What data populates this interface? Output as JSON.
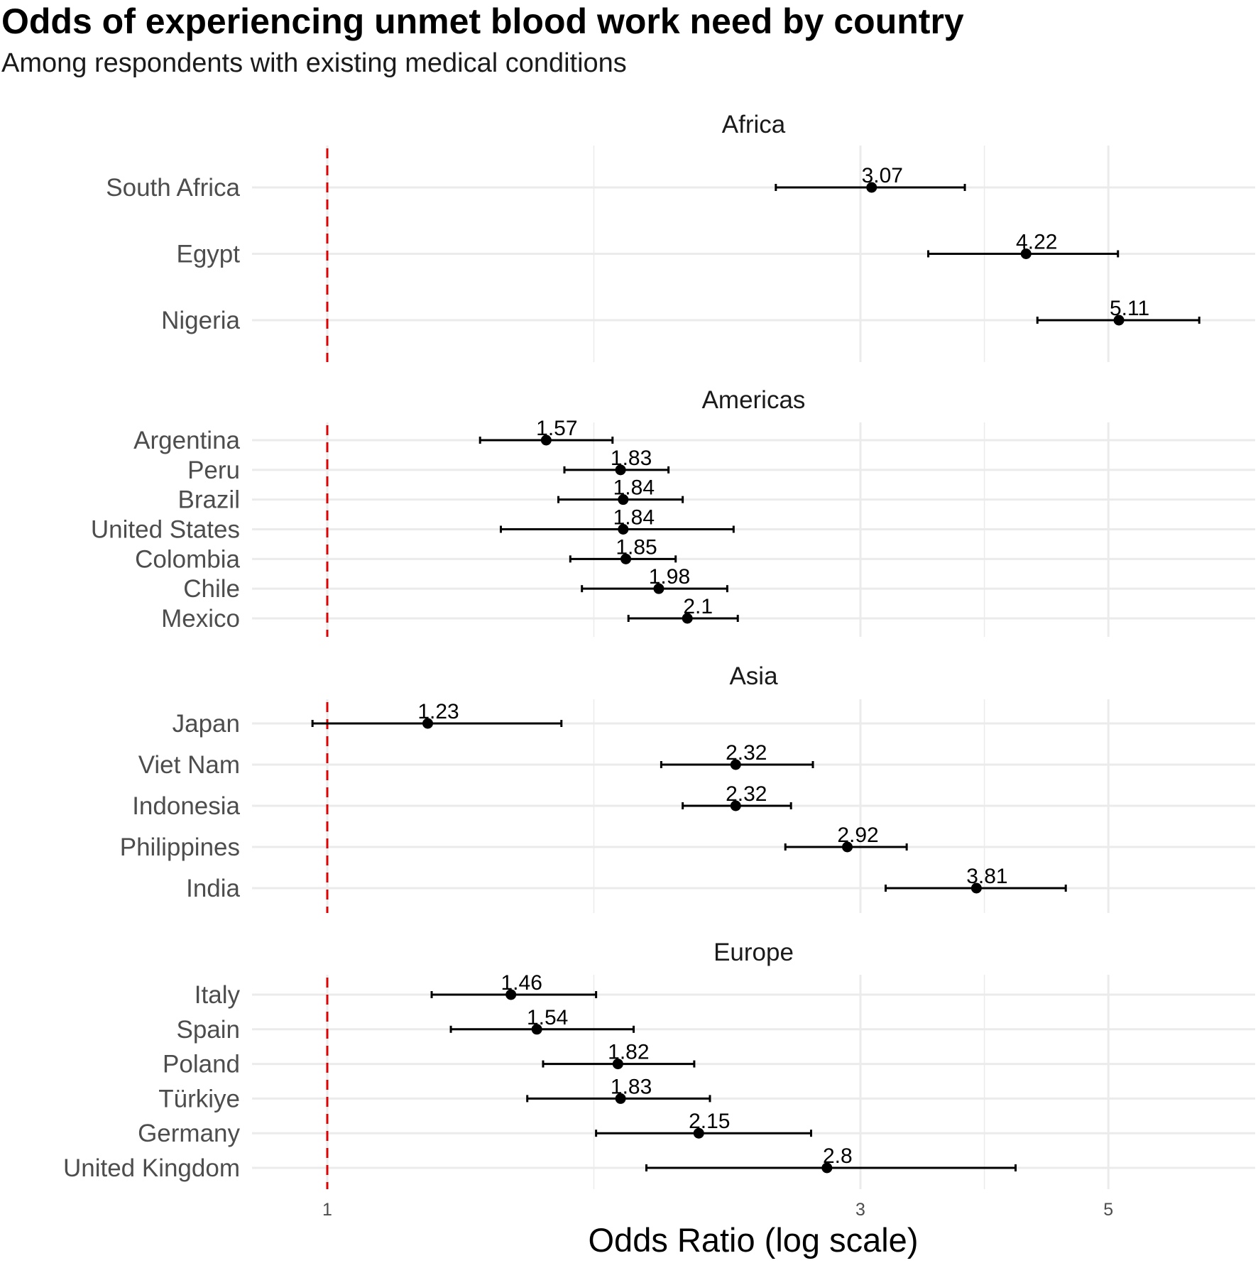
{
  "chart_data": {
    "type": "forest",
    "title": "Odds of experiencing unmet blood work need by country",
    "subtitle": "Among respondents with existing medical conditions",
    "xlabel": "Odds Ratio (log scale)",
    "x_scale": "log",
    "x_ticks": [
      1,
      3,
      5
    ],
    "x_tick_labels": [
      "1",
      "3",
      "5"
    ],
    "xlim": [
      0.915,
      6.5
    ],
    "reference_line": {
      "value": 1,
      "color": "#e00000",
      "style": "dashed"
    },
    "grid": true,
    "facets": [
      {
        "name": "Africa",
        "rows": [
          {
            "country": "South Africa",
            "or": 3.07,
            "label": "3.07",
            "lo": 2.52,
            "hi": 3.72
          },
          {
            "country": "Egypt",
            "or": 4.22,
            "label": "4.22",
            "lo": 3.45,
            "hi": 5.1
          },
          {
            "country": "Nigeria",
            "or": 5.11,
            "label": "5.11",
            "lo": 4.32,
            "hi": 6.03
          }
        ]
      },
      {
        "name": "Americas",
        "rows": [
          {
            "country": "Argentina",
            "or": 1.57,
            "label": "1.57",
            "lo": 1.37,
            "hi": 1.8
          },
          {
            "country": "Peru",
            "or": 1.83,
            "label": "1.83",
            "lo": 1.63,
            "hi": 2.02
          },
          {
            "country": "Brazil",
            "or": 1.84,
            "label": "1.84",
            "lo": 1.61,
            "hi": 2.08
          },
          {
            "country": "United States",
            "or": 1.84,
            "label": "1.84",
            "lo": 1.43,
            "hi": 2.31
          },
          {
            "country": "Colombia",
            "or": 1.85,
            "label": "1.85",
            "lo": 1.65,
            "hi": 2.05
          },
          {
            "country": "Chile",
            "or": 1.98,
            "label": "1.98",
            "lo": 1.69,
            "hi": 2.28
          },
          {
            "country": "Mexico",
            "or": 2.1,
            "label": "2.1",
            "lo": 1.86,
            "hi": 2.33
          }
        ]
      },
      {
        "name": "Asia",
        "rows": [
          {
            "country": "Japan",
            "or": 1.23,
            "label": "1.23",
            "lo": 0.97,
            "hi": 1.62
          },
          {
            "country": "Viet Nam",
            "or": 2.32,
            "label": "2.32",
            "lo": 1.99,
            "hi": 2.72
          },
          {
            "country": "Indonesia",
            "or": 2.32,
            "label": "2.32",
            "lo": 2.08,
            "hi": 2.6
          },
          {
            "country": "Philippines",
            "or": 2.92,
            "label": "2.92",
            "lo": 2.57,
            "hi": 3.3
          },
          {
            "country": "India",
            "or": 3.81,
            "label": "3.81",
            "lo": 3.16,
            "hi": 4.58
          }
        ]
      },
      {
        "name": "Europe",
        "rows": [
          {
            "country": "Italy",
            "or": 1.46,
            "label": "1.46",
            "lo": 1.24,
            "hi": 1.74
          },
          {
            "country": "Spain",
            "or": 1.54,
            "label": "1.54",
            "lo": 1.29,
            "hi": 1.88
          },
          {
            "country": "Poland",
            "or": 1.82,
            "label": "1.82",
            "lo": 1.56,
            "hi": 2.13
          },
          {
            "country": "Türkiye",
            "or": 1.83,
            "label": "1.83",
            "lo": 1.51,
            "hi": 2.2
          },
          {
            "country": "Germany",
            "or": 2.15,
            "label": "2.15",
            "lo": 1.74,
            "hi": 2.71
          },
          {
            "country": "United Kingdom",
            "or": 2.8,
            "label": "2.8",
            "lo": 1.93,
            "hi": 4.13
          }
        ]
      }
    ]
  }
}
